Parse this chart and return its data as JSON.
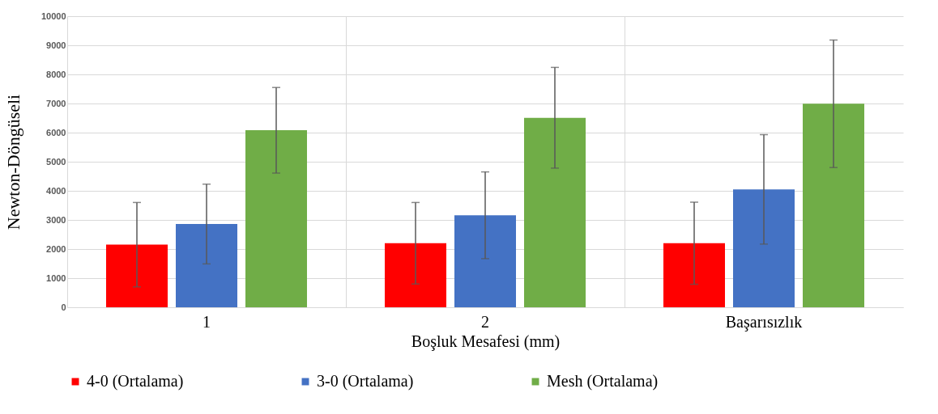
{
  "chart_data": {
    "type": "bar",
    "xlabel": "Boşluk Mesafesi (mm)",
    "ylabel": "Newton-Döngüseli",
    "categories": [
      "1",
      "2",
      "Başarısızlık"
    ],
    "series": [
      {
        "name": "4-0 (Ortalama)",
        "color": "#ff0000",
        "values": [
          2150,
          2200,
          2200
        ],
        "errors": [
          1450,
          1400,
          1410
        ]
      },
      {
        "name": "3-0 (Ortalama)",
        "color": "#4472c4",
        "values": [
          2860,
          3160,
          4050
        ],
        "errors": [
          1370,
          1490,
          1880
        ]
      },
      {
        "name": "Mesh (Ortalama)",
        "color": "#70ad47",
        "values": [
          6080,
          6510,
          6990
        ],
        "errors": [
          1470,
          1730,
          2190
        ]
      }
    ],
    "ylim": [
      0,
      10000
    ],
    "yticks": [
      0,
      1000,
      2000,
      3000,
      4000,
      5000,
      6000,
      7000,
      8000,
      9000,
      10000
    ],
    "grid": true,
    "legend": "bottom"
  }
}
